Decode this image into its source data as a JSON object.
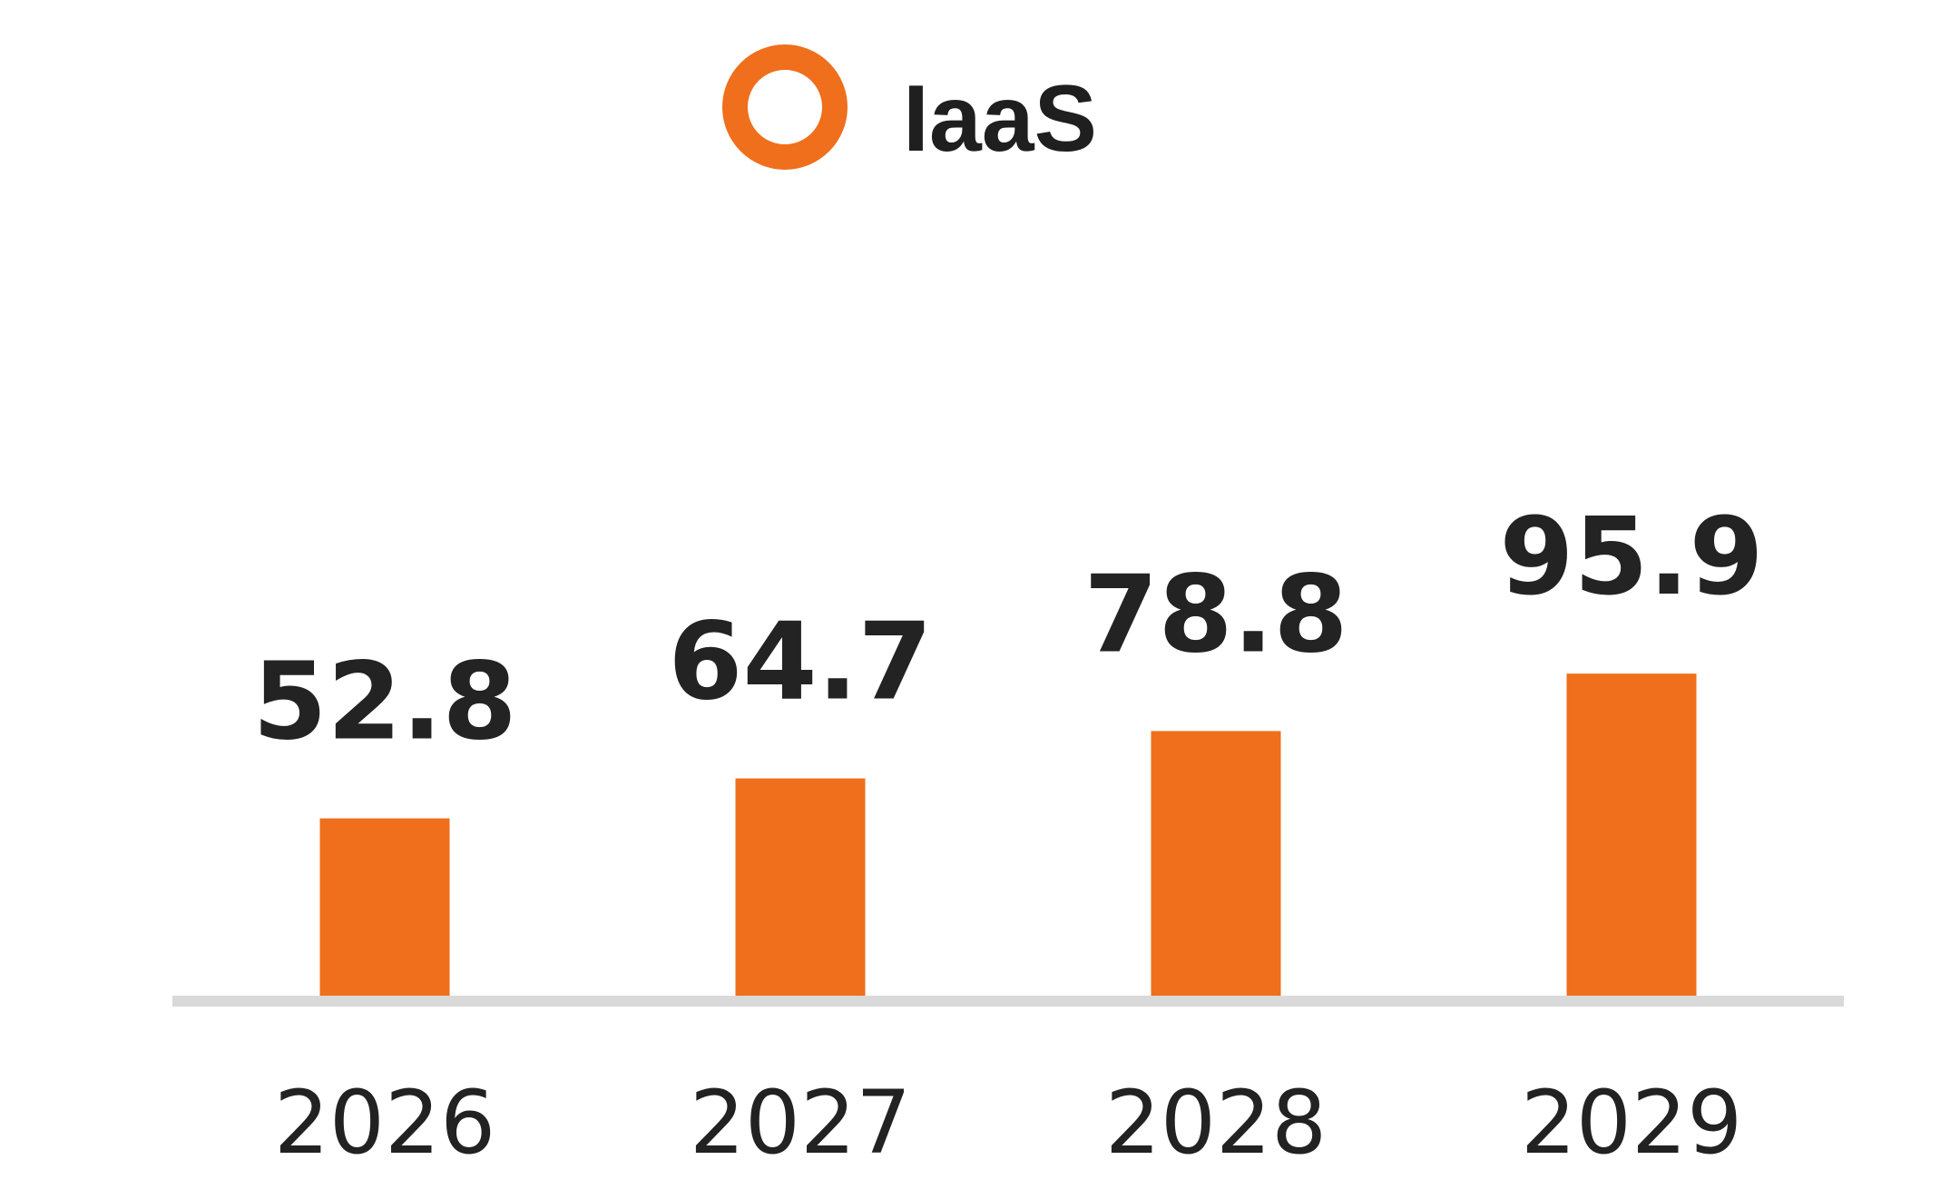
{
  "chart_data": {
    "type": "bar",
    "categories": [
      "2026",
      "2027",
      "2028",
      "2029"
    ],
    "series": [
      {
        "name": "IaaS",
        "values": [
          52.8,
          64.7,
          78.8,
          95.9
        ],
        "labels": [
          "52.8",
          "64.7",
          "78.8",
          "95.9"
        ],
        "color": "#ef6f1c"
      }
    ],
    "title": "",
    "xlabel": "",
    "ylabel": "",
    "ylim": [
      0,
      100
    ],
    "grid": false,
    "legend": "top-center",
    "axis_color": "#d9d9d9",
    "text_color": "#222222"
  }
}
